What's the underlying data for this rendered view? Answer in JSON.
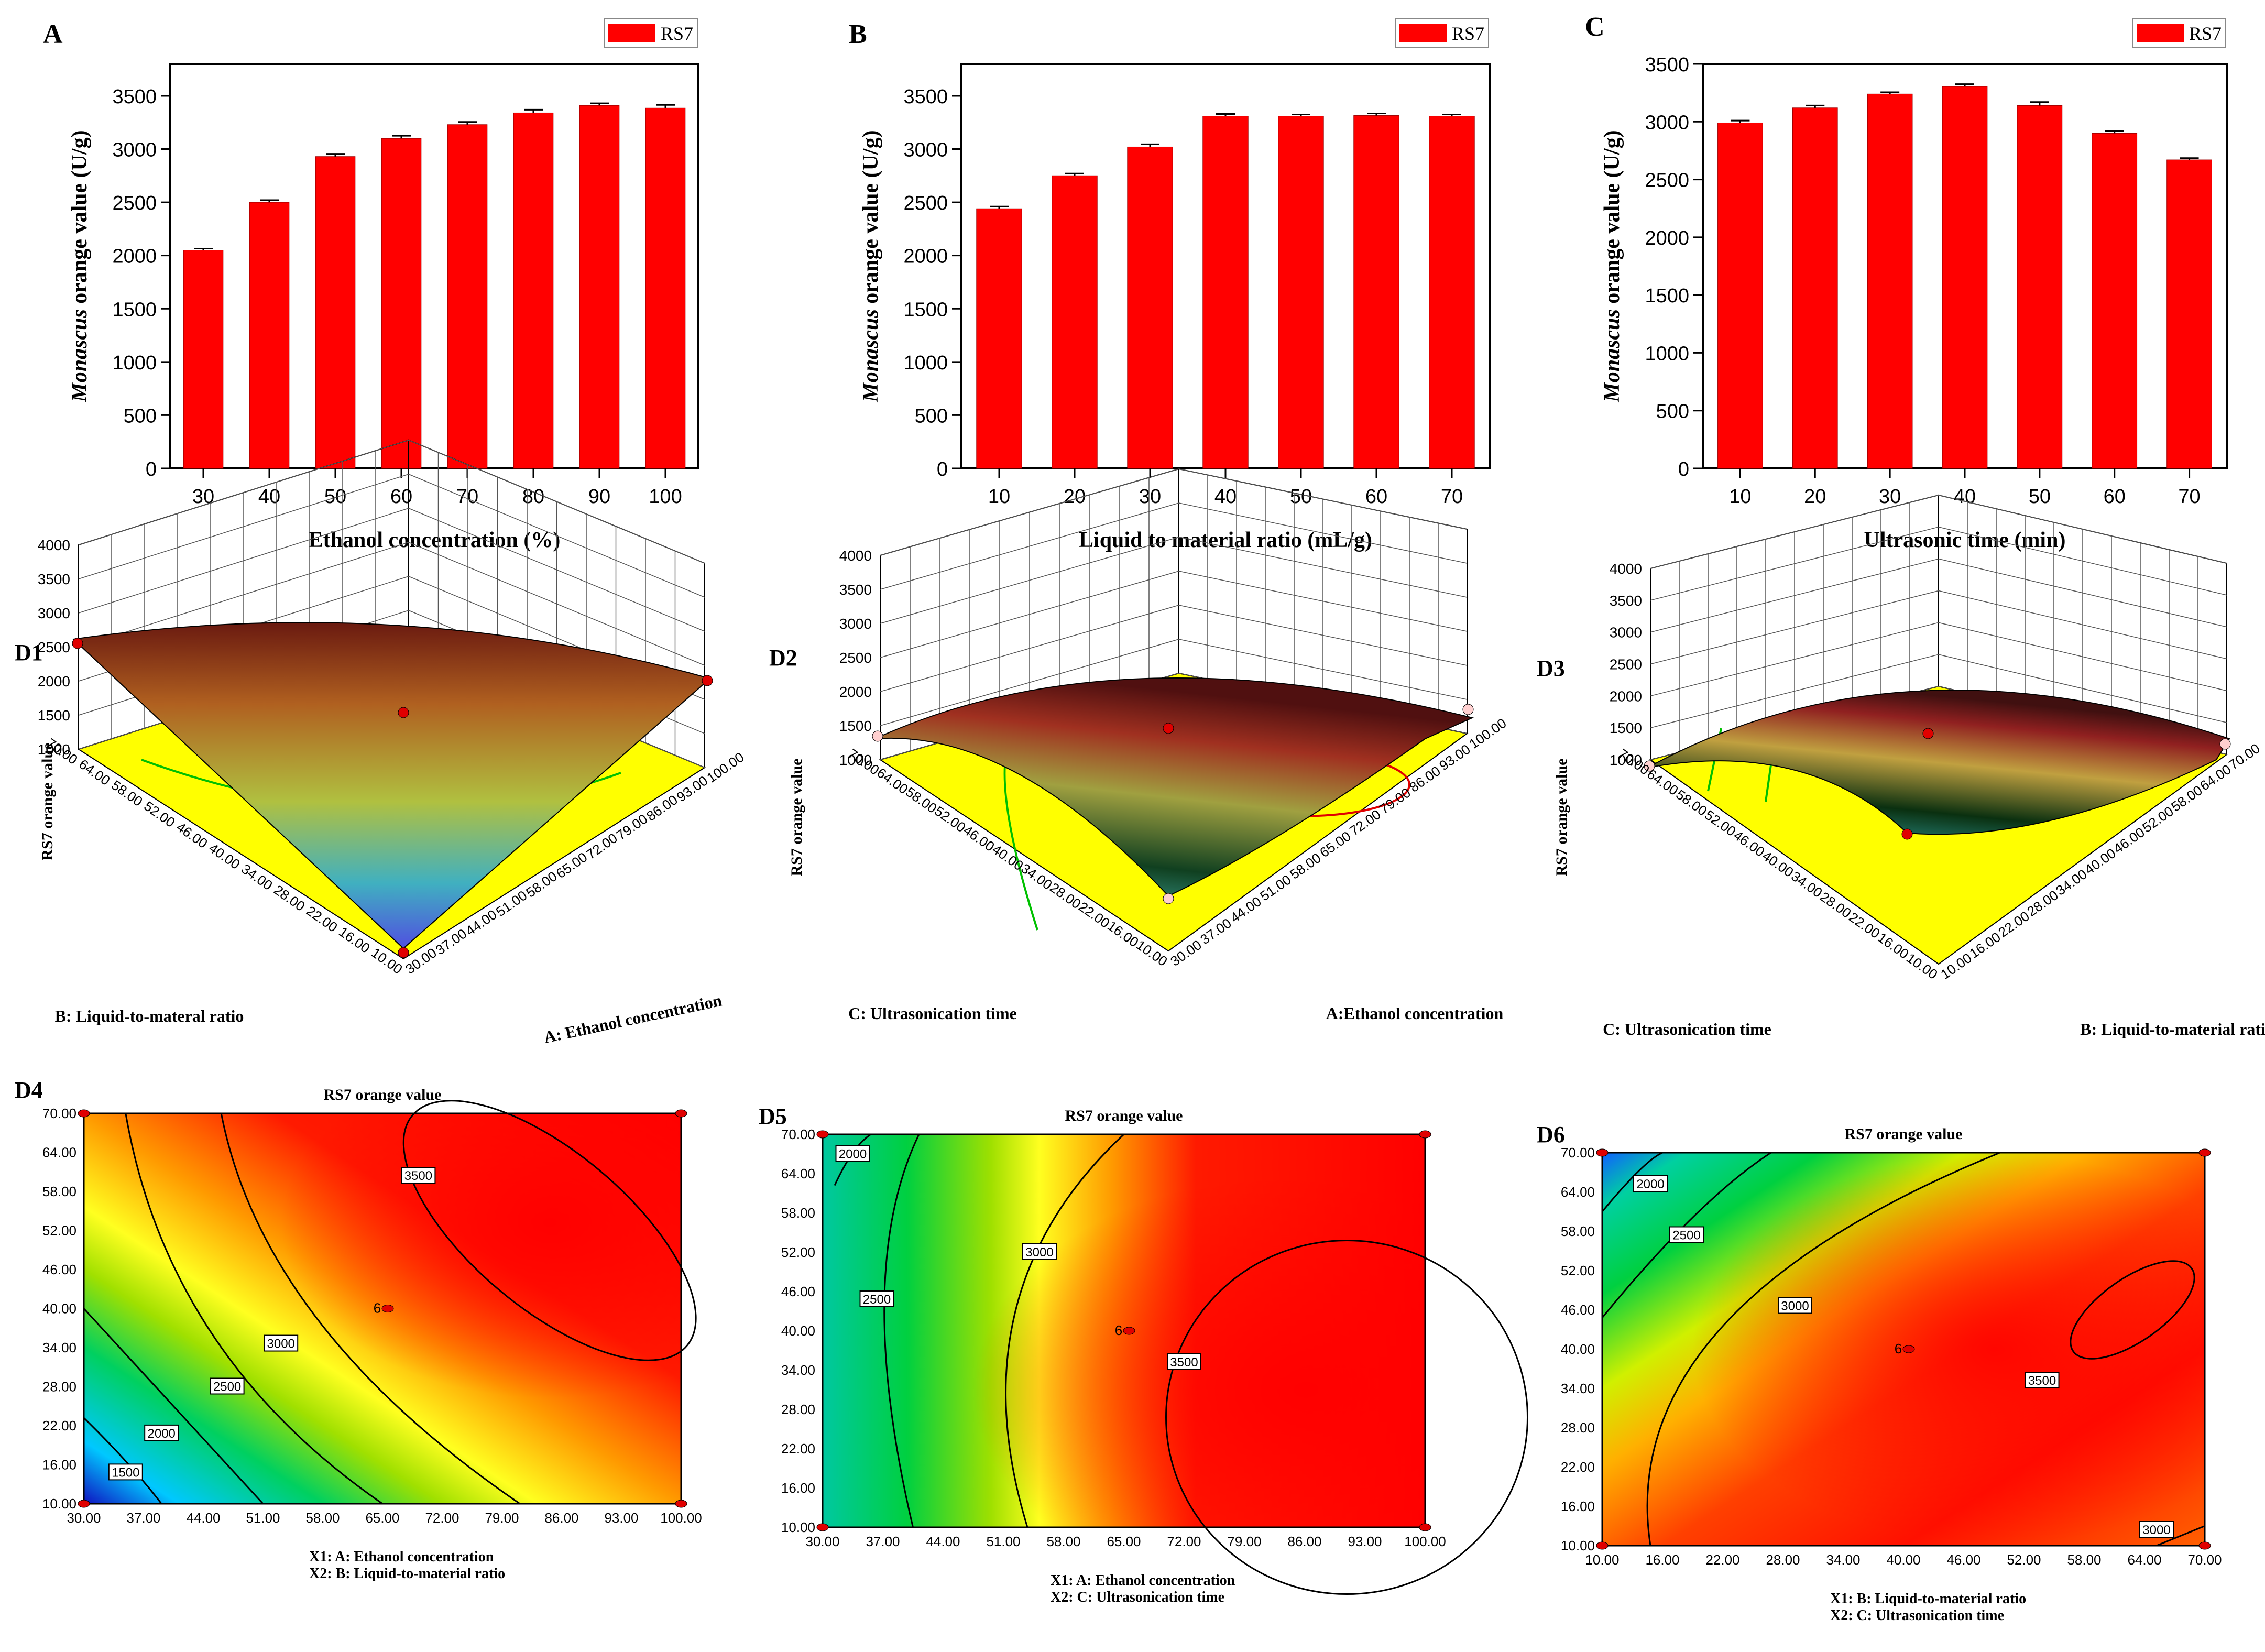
{
  "figure": {
    "panel_letters": [
      "A",
      "B",
      "C",
      "D1",
      "D2",
      "D3",
      "D4",
      "D5",
      "D6"
    ]
  },
  "chart_data": [
    {
      "id": "A",
      "type": "bar",
      "legend": "RS7",
      "xlabel": "Ethanol concentration (%)",
      "ylabel_italic": "Monascus",
      "ylabel_rest": " orange value (U/g)",
      "categories": [
        "30",
        "40",
        "50",
        "60",
        "70",
        "80",
        "90",
        "100"
      ],
      "values": [
        2050,
        2500,
        2930,
        3100,
        3230,
        3340,
        3410,
        3385
      ],
      "errors": [
        15,
        20,
        25,
        25,
        25,
        30,
        20,
        30
      ],
      "ylim": [
        0,
        3800
      ],
      "yticks": [
        "0",
        "500",
        "1000",
        "1500",
        "2000",
        "2500",
        "3000",
        "3500"
      ],
      "color": "#ff0000"
    },
    {
      "id": "B",
      "type": "bar",
      "legend": "RS7",
      "xlabel": "Liquid to material ratio (mL/g)",
      "ylabel_italic": "Monascus",
      "ylabel_rest": " orange value (U/g)",
      "categories": [
        "10",
        "20",
        "30",
        "40",
        "50",
        "60",
        "70"
      ],
      "values": [
        2440,
        2750,
        3020,
        3310,
        3310,
        3315,
        3310
      ],
      "errors": [
        20,
        20,
        25,
        20,
        15,
        20,
        15
      ],
      "ylim": [
        0,
        3800
      ],
      "yticks": [
        "0",
        "500",
        "1000",
        "1500",
        "2000",
        "2500",
        "3000",
        "3500"
      ],
      "color": "#ff0000"
    },
    {
      "id": "C",
      "type": "bar",
      "legend": "RS7",
      "xlabel": "Ultrasonic time (min)",
      "ylabel_italic": "Monascus",
      "ylabel_rest": " orange value (U/g)",
      "categories": [
        "10",
        "20",
        "30",
        "40",
        "50",
        "60",
        "70"
      ],
      "values": [
        2990,
        3120,
        3240,
        3305,
        3140,
        2900,
        2670
      ],
      "errors": [
        20,
        20,
        15,
        20,
        30,
        20,
        15
      ],
      "ylim": [
        0,
        3500
      ],
      "yticks": [
        "0",
        "500",
        "1000",
        "1500",
        "2000",
        "2500",
        "3000",
        "3500"
      ],
      "color": "#ff0000"
    },
    {
      "id": "D1",
      "type": "surface",
      "zlabel": "RS7 orange value",
      "zticks": [
        "1000",
        "1500",
        "2000",
        "2500",
        "3000",
        "3500",
        "4000"
      ],
      "xlabel": "A: Ethanol concentration",
      "ylabel": "B: Liquid-to-materal ratio",
      "xticks": [
        "30.00",
        "37.00",
        "44.00",
        "51.00",
        "58.00",
        "65.00",
        "72.00",
        "79.00",
        "86.00",
        "93.00",
        "100.00"
      ],
      "yticks": [
        "10.00",
        "16.00",
        "22.00",
        "28.00",
        "34.00",
        "40.00",
        "46.00",
        "52.00",
        "58.00",
        "64.00",
        "70.00"
      ]
    },
    {
      "id": "D2",
      "type": "surface",
      "zlabel": "RS7 orange value",
      "zticks": [
        "1000",
        "1500",
        "2000",
        "2500",
        "3000",
        "3500",
        "4000"
      ],
      "xlabel": "A:Ethanol concentration",
      "ylabel": "C: Ultrasonication time",
      "xticks": [
        "30.00",
        "37.00",
        "44.00",
        "51.00",
        "58.00",
        "65.00",
        "72.00",
        "79.00",
        "86.00",
        "93.00",
        "100.00"
      ],
      "yticks": [
        "10.00",
        "16.00",
        "22.00",
        "28.00",
        "34.00",
        "40.00",
        "46.00",
        "52.00",
        "58.00",
        "64.00",
        "70.00"
      ]
    },
    {
      "id": "D3",
      "type": "surface",
      "zlabel": "RS7 orange value",
      "zticks": [
        "1000",
        "1500",
        "2000",
        "2500",
        "3000",
        "3500",
        "4000"
      ],
      "xlabel": "B: Liquid-to-material ratio",
      "ylabel": "C: Ultrasonication time",
      "xticks": [
        "10.00",
        "16.00",
        "22.00",
        "28.00",
        "34.00",
        "40.00",
        "46.00",
        "52.00",
        "58.00",
        "64.00",
        "70.00"
      ],
      "yticks": [
        "10.00",
        "16.00",
        "22.00",
        "28.00",
        "34.00",
        "40.00",
        "46.00",
        "52.00",
        "58.00",
        "64.00",
        "70.00"
      ]
    },
    {
      "id": "D4",
      "type": "contour",
      "title": "RS7 orange value",
      "xlabel1": "X1: A: Ethanol concentration",
      "xlabel2": "X2: B: Liquid-to-material ratio",
      "xticks": [
        "30.00",
        "37.00",
        "44.00",
        "51.00",
        "58.00",
        "65.00",
        "72.00",
        "79.00",
        "86.00",
        "93.00",
        "100.00"
      ],
      "yticks": [
        "10.00",
        "16.00",
        "22.00",
        "28.00",
        "34.00",
        "40.00",
        "46.00",
        "52.00",
        "58.00",
        "64.00",
        "70.00"
      ],
      "contour_labels": [
        "1500",
        "2000",
        "2500",
        "3000",
        "3500"
      ],
      "center_label": "6"
    },
    {
      "id": "D5",
      "type": "contour",
      "title": "RS7 orange value",
      "xlabel1": "X1: A: Ethanol concentration",
      "xlabel2": "X2: C: Ultrasonication time",
      "xticks": [
        "30.00",
        "37.00",
        "44.00",
        "51.00",
        "58.00",
        "65.00",
        "72.00",
        "79.00",
        "86.00",
        "93.00",
        "100.00"
      ],
      "yticks": [
        "10.00",
        "16.00",
        "22.00",
        "28.00",
        "34.00",
        "40.00",
        "46.00",
        "52.00",
        "58.00",
        "64.00",
        "70.00"
      ],
      "contour_labels": [
        "2000",
        "2500",
        "3000",
        "3500"
      ],
      "center_label": "6"
    },
    {
      "id": "D6",
      "type": "contour",
      "title": "RS7 orange value",
      "xlabel1": "X1: B: Liquid-to-material ratio",
      "xlabel2": "X2: C: Ultrasonication time",
      "xticks": [
        "10.00",
        "16.00",
        "22.00",
        "28.00",
        "34.00",
        "40.00",
        "46.00",
        "52.00",
        "58.00",
        "64.00",
        "70.00"
      ],
      "yticks": [
        "10.00",
        "16.00",
        "22.00",
        "28.00",
        "34.00",
        "40.00",
        "46.00",
        "52.00",
        "58.00",
        "64.00",
        "70.00"
      ],
      "contour_labels": [
        "2000",
        "2500",
        "3000",
        "3500",
        "3000"
      ],
      "center_label": "6"
    }
  ]
}
